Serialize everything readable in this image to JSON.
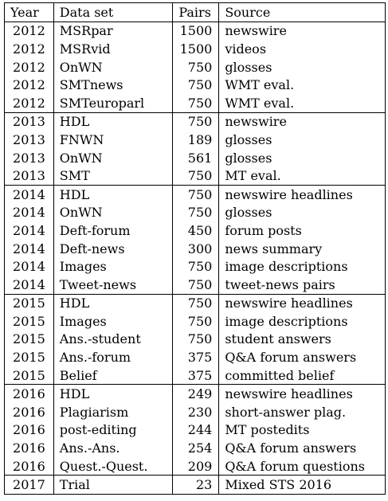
{
  "header": {
    "year": "Year",
    "dataset": "Data set",
    "pairs": "Pairs",
    "source": "Source"
  },
  "groups": [
    {
      "rows": [
        {
          "year": "2012",
          "dataset": "MSRpar",
          "pairs": "1500",
          "source": "newswire"
        },
        {
          "year": "2012",
          "dataset": "MSRvid",
          "pairs": "1500",
          "source": "videos"
        },
        {
          "year": "2012",
          "dataset": "OnWN",
          "pairs": "750",
          "source": "glosses"
        },
        {
          "year": "2012",
          "dataset": "SMTnews",
          "pairs": "750",
          "source": "WMT eval."
        },
        {
          "year": "2012",
          "dataset": "SMTeuroparl",
          "pairs": "750",
          "source": "WMT eval."
        }
      ]
    },
    {
      "rows": [
        {
          "year": "2013",
          "dataset": "HDL",
          "pairs": "750",
          "source": "newswire"
        },
        {
          "year": "2013",
          "dataset": "FNWN",
          "pairs": "189",
          "source": "glosses"
        },
        {
          "year": "2013",
          "dataset": "OnWN",
          "pairs": "561",
          "source": "glosses"
        },
        {
          "year": "2013",
          "dataset": "SMT",
          "pairs": "750",
          "source": "MT eval."
        }
      ]
    },
    {
      "rows": [
        {
          "year": "2014",
          "dataset": "HDL",
          "pairs": "750",
          "source": "newswire headlines"
        },
        {
          "year": "2014",
          "dataset": "OnWN",
          "pairs": "750",
          "source": "glosses"
        },
        {
          "year": "2014",
          "dataset": "Deft-forum",
          "pairs": "450",
          "source": "forum posts"
        },
        {
          "year": "2014",
          "dataset": "Deft-news",
          "pairs": "300",
          "source": "news summary"
        },
        {
          "year": "2014",
          "dataset": "Images",
          "pairs": "750",
          "source": "image descriptions"
        },
        {
          "year": "2014",
          "dataset": "Tweet-news",
          "pairs": "750",
          "source": "tweet-news pairs"
        }
      ]
    },
    {
      "rows": [
        {
          "year": "2015",
          "dataset": "HDL",
          "pairs": "750",
          "source": "newswire headlines"
        },
        {
          "year": "2015",
          "dataset": "Images",
          "pairs": "750",
          "source": "image descriptions"
        },
        {
          "year": "2015",
          "dataset": "Ans.-student",
          "pairs": "750",
          "source": "student answers"
        },
        {
          "year": "2015",
          "dataset": "Ans.-forum",
          "pairs": "375",
          "source": "Q&A forum answers"
        },
        {
          "year": "2015",
          "dataset": "Belief",
          "pairs": "375",
          "source": "committed belief"
        }
      ]
    },
    {
      "rows": [
        {
          "year": "2016",
          "dataset": "HDL",
          "pairs": "249",
          "source": "newswire headlines"
        },
        {
          "year": "2016",
          "dataset": "Plagiarism",
          "pairs": "230",
          "source": "short-answer plag."
        },
        {
          "year": "2016",
          "dataset": "post-editing",
          "pairs": "244",
          "source": "MT postedits"
        },
        {
          "year": "2016",
          "dataset": "Ans.-Ans.",
          "pairs": "254",
          "source": "Q&A forum answers"
        },
        {
          "year": "2016",
          "dataset": "Quest.-Quest.",
          "pairs": "209",
          "source": "Q&A forum questions"
        }
      ]
    },
    {
      "rows": [
        {
          "year": "2017",
          "dataset": "Trial",
          "pairs": "23",
          "source": "Mixed STS 2016"
        }
      ]
    }
  ]
}
